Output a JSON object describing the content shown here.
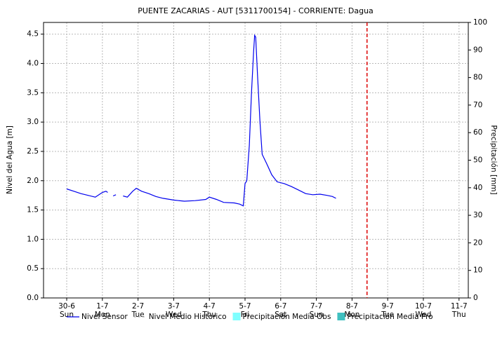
{
  "chart_data": {
    "type": "line",
    "title": "PUENTE ZACARIAS - AUT   [5311700154] - CORRIENTE: Dagua",
    "y_label": "Nivel del Agua [m]",
    "y2_label": "Precipitación [mm]",
    "xlim": [
      -0.65,
      11.26
    ],
    "xticks": [
      {
        "value": 0,
        "label": "30-6"
      },
      {
        "value": 1,
        "label": "1-7"
      },
      {
        "value": 2,
        "label": "2-7"
      },
      {
        "value": 3,
        "label": "3-7"
      },
      {
        "value": 4,
        "label": "4-7"
      },
      {
        "value": 5,
        "label": "5-7"
      },
      {
        "value": 6,
        "label": "6-7"
      },
      {
        "value": 7,
        "label": "7-7"
      },
      {
        "value": 8,
        "label": "8-7"
      },
      {
        "value": 9,
        "label": "9-7"
      },
      {
        "value": 10,
        "label": "10-7"
      },
      {
        "value": 11,
        "label": "11-7"
      }
    ],
    "xtick_days": [
      "Sun",
      "Mon",
      "Tue",
      "Wed",
      "Thu",
      "Fri",
      "Sat",
      "Sun",
      "Mon",
      "Tue",
      "Wed",
      "Thu"
    ],
    "ylim": [
      0,
      4.7
    ],
    "yticks": [
      {
        "value": 0,
        "label": "0.0"
      },
      {
        "value": 0.5,
        "label": "0.5"
      },
      {
        "value": 1,
        "label": "1.0"
      },
      {
        "value": 1.5,
        "label": "1.5"
      },
      {
        "value": 2,
        "label": "2.0"
      },
      {
        "value": 2.5,
        "label": "2.5"
      },
      {
        "value": 3,
        "label": "3.0"
      },
      {
        "value": 3.5,
        "label": "3.5"
      },
      {
        "value": 4,
        "label": "4.0"
      },
      {
        "value": 4.5,
        "label": "4.5"
      }
    ],
    "y2lim": [
      0,
      100
    ],
    "y2ticks": [
      0,
      10,
      20,
      30,
      40,
      50,
      60,
      70,
      80,
      90,
      100
    ],
    "grid": true,
    "now_line": {
      "x": 8.42,
      "color": "#dd0000"
    },
    "series": [
      {
        "name": "Nivel Sensor",
        "color": "#0000ee",
        "style": "solid",
        "x": [
          0,
          0.2,
          0.4,
          0.6,
          0.8,
          1.0,
          1.1,
          1.15,
          1.2,
          1.3,
          1.38,
          1.45,
          1.58,
          1.7,
          1.85,
          1.95,
          2.1,
          2.3,
          2.5,
          2.7,
          3.0,
          3.3,
          3.6,
          3.9,
          4.0,
          4.2,
          4.4,
          4.7,
          4.85,
          4.95,
          5.0,
          5.05,
          5.12,
          5.18,
          5.24,
          5.27,
          5.3,
          5.35,
          5.42,
          5.48,
          5.6,
          5.75,
          5.9,
          6.1,
          6.3,
          6.5,
          6.7,
          6.9,
          7.1,
          7.3,
          7.45,
          7.55
        ],
        "values": [
          1.86,
          1.82,
          1.78,
          1.75,
          1.72,
          1.8,
          1.82,
          1.8,
          null,
          1.74,
          1.76,
          null,
          1.74,
          1.72,
          1.82,
          1.87,
          1.82,
          1.78,
          1.73,
          1.7,
          1.67,
          1.65,
          1.66,
          1.68,
          1.72,
          1.68,
          1.63,
          1.62,
          1.6,
          1.57,
          1.95,
          2.0,
          2.6,
          3.5,
          4.2,
          4.48,
          4.45,
          3.8,
          3.0,
          2.45,
          2.3,
          2.1,
          1.98,
          1.95,
          1.9,
          1.84,
          1.78,
          1.76,
          1.77,
          1.75,
          1.73,
          1.7
        ]
      },
      {
        "name": "Nivel Medio Historico",
        "color": "#b0b0b0",
        "style": "dashed"
      },
      {
        "name": "Precipitación Media Obs",
        "color": "#80ffff",
        "style": "box"
      },
      {
        "name": "Precipitación Media Pro",
        "color": "#40c0c0",
        "style": "box"
      }
    ]
  }
}
